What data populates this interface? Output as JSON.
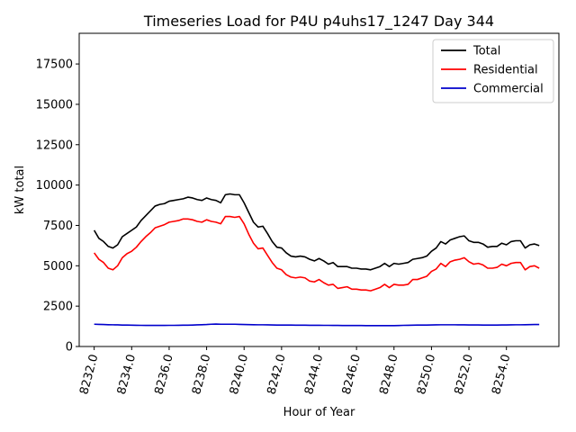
{
  "chart_data": {
    "type": "line",
    "title": "Timeseries Load for P4U p4uhs17_1247  Day 344",
    "xlabel": "Hour of Year",
    "ylabel": "kW total",
    "xlim": [
      8231.2,
      8256.8
    ],
    "ylim": [
      0,
      19400
    ],
    "xticks": [
      8232,
      8234,
      8236,
      8238,
      8240,
      8242,
      8244,
      8246,
      8248,
      8250,
      8252,
      8254
    ],
    "xtick_labels": [
      "8232.0",
      "8234.0",
      "8236.0",
      "8238.0",
      "8240.0",
      "8242.0",
      "8244.0",
      "8246.0",
      "8248.0",
      "8250.0",
      "8252.0",
      "8254.0"
    ],
    "yticks": [
      0,
      2500,
      5000,
      7500,
      10000,
      12500,
      15000,
      17500
    ],
    "ytick_labels": [
      "0",
      "2500",
      "5000",
      "7500",
      "10000",
      "12500",
      "15000",
      "17500"
    ],
    "legend_position": "upper right",
    "x_start": 8232,
    "x_step": 0.25,
    "series": [
      {
        "name": "Total",
        "color": "#000000",
        "values": [
          7200,
          6700,
          6500,
          6200,
          6100,
          6300,
          6800,
          7000,
          7200,
          7400,
          7800,
          8100,
          8400,
          8700,
          8800,
          8850,
          9000,
          9050,
          9100,
          9150,
          9250,
          9200,
          9100,
          9050,
          9200,
          9100,
          9050,
          8900,
          9400,
          9450,
          9400,
          9400,
          8900,
          8300,
          7700,
          7400,
          7450,
          7000,
          6500,
          6150,
          6100,
          5800,
          5600,
          5550,
          5600,
          5550,
          5400,
          5300,
          5450,
          5300,
          5100,
          5200,
          4950,
          4950,
          4950,
          4850,
          4850,
          4800,
          4800,
          4750,
          4850,
          4950,
          5150,
          4950,
          5150,
          5100,
          5150,
          5200,
          5400,
          5450,
          5500,
          5600,
          5900,
          6100,
          6500,
          6350,
          6600,
          6700,
          6800,
          6850,
          6550,
          6450,
          6450,
          6350,
          6150,
          6200,
          6200,
          6400,
          6300,
          6500,
          6550,
          6550,
          6100,
          6300,
          6350,
          6250
        ]
      },
      {
        "name": "Residential",
        "color": "#ff0000",
        "values": [
          5800,
          5400,
          5200,
          4850,
          4750,
          5000,
          5500,
          5750,
          5900,
          6150,
          6500,
          6800,
          7050,
          7350,
          7450,
          7550,
          7700,
          7750,
          7800,
          7900,
          7900,
          7850,
          7750,
          7700,
          7850,
          7750,
          7700,
          7600,
          8050,
          8050,
          8000,
          8050,
          7600,
          6950,
          6400,
          6050,
          6100,
          5650,
          5200,
          4850,
          4750,
          4450,
          4300,
          4250,
          4300,
          4250,
          4050,
          4000,
          4150,
          3950,
          3800,
          3850,
          3600,
          3650,
          3700,
          3550,
          3550,
          3500,
          3500,
          3450,
          3550,
          3650,
          3850,
          3650,
          3850,
          3800,
          3800,
          3850,
          4150,
          4150,
          4250,
          4350,
          4650,
          4800,
          5150,
          4950,
          5250,
          5350,
          5400,
          5500,
          5250,
          5100,
          5150,
          5050,
          4850,
          4850,
          4900,
          5100,
          5000,
          5150,
          5200,
          5200,
          4750,
          4950,
          5000,
          4850
        ]
      },
      {
        "name": "Commercial",
        "color": "#0000cc",
        "values": [
          1380,
          1370,
          1360,
          1350,
          1345,
          1340,
          1330,
          1325,
          1320,
          1315,
          1310,
          1305,
          1305,
          1305,
          1305,
          1305,
          1310,
          1310,
          1315,
          1320,
          1320,
          1330,
          1340,
          1350,
          1360,
          1380,
          1390,
          1380,
          1380,
          1380,
          1380,
          1370,
          1360,
          1355,
          1350,
          1345,
          1345,
          1340,
          1335,
          1330,
          1330,
          1325,
          1325,
          1320,
          1320,
          1320,
          1315,
          1315,
          1315,
          1310,
          1310,
          1305,
          1305,
          1300,
          1300,
          1300,
          1300,
          1300,
          1295,
          1295,
          1295,
          1290,
          1290,
          1290,
          1295,
          1300,
          1310,
          1315,
          1320,
          1325,
          1325,
          1330,
          1335,
          1340,
          1345,
          1345,
          1345,
          1345,
          1340,
          1340,
          1335,
          1335,
          1335,
          1330,
          1330,
          1330,
          1330,
          1335,
          1335,
          1340,
          1345,
          1345,
          1350,
          1355,
          1360,
          1360
        ]
      }
    ]
  }
}
